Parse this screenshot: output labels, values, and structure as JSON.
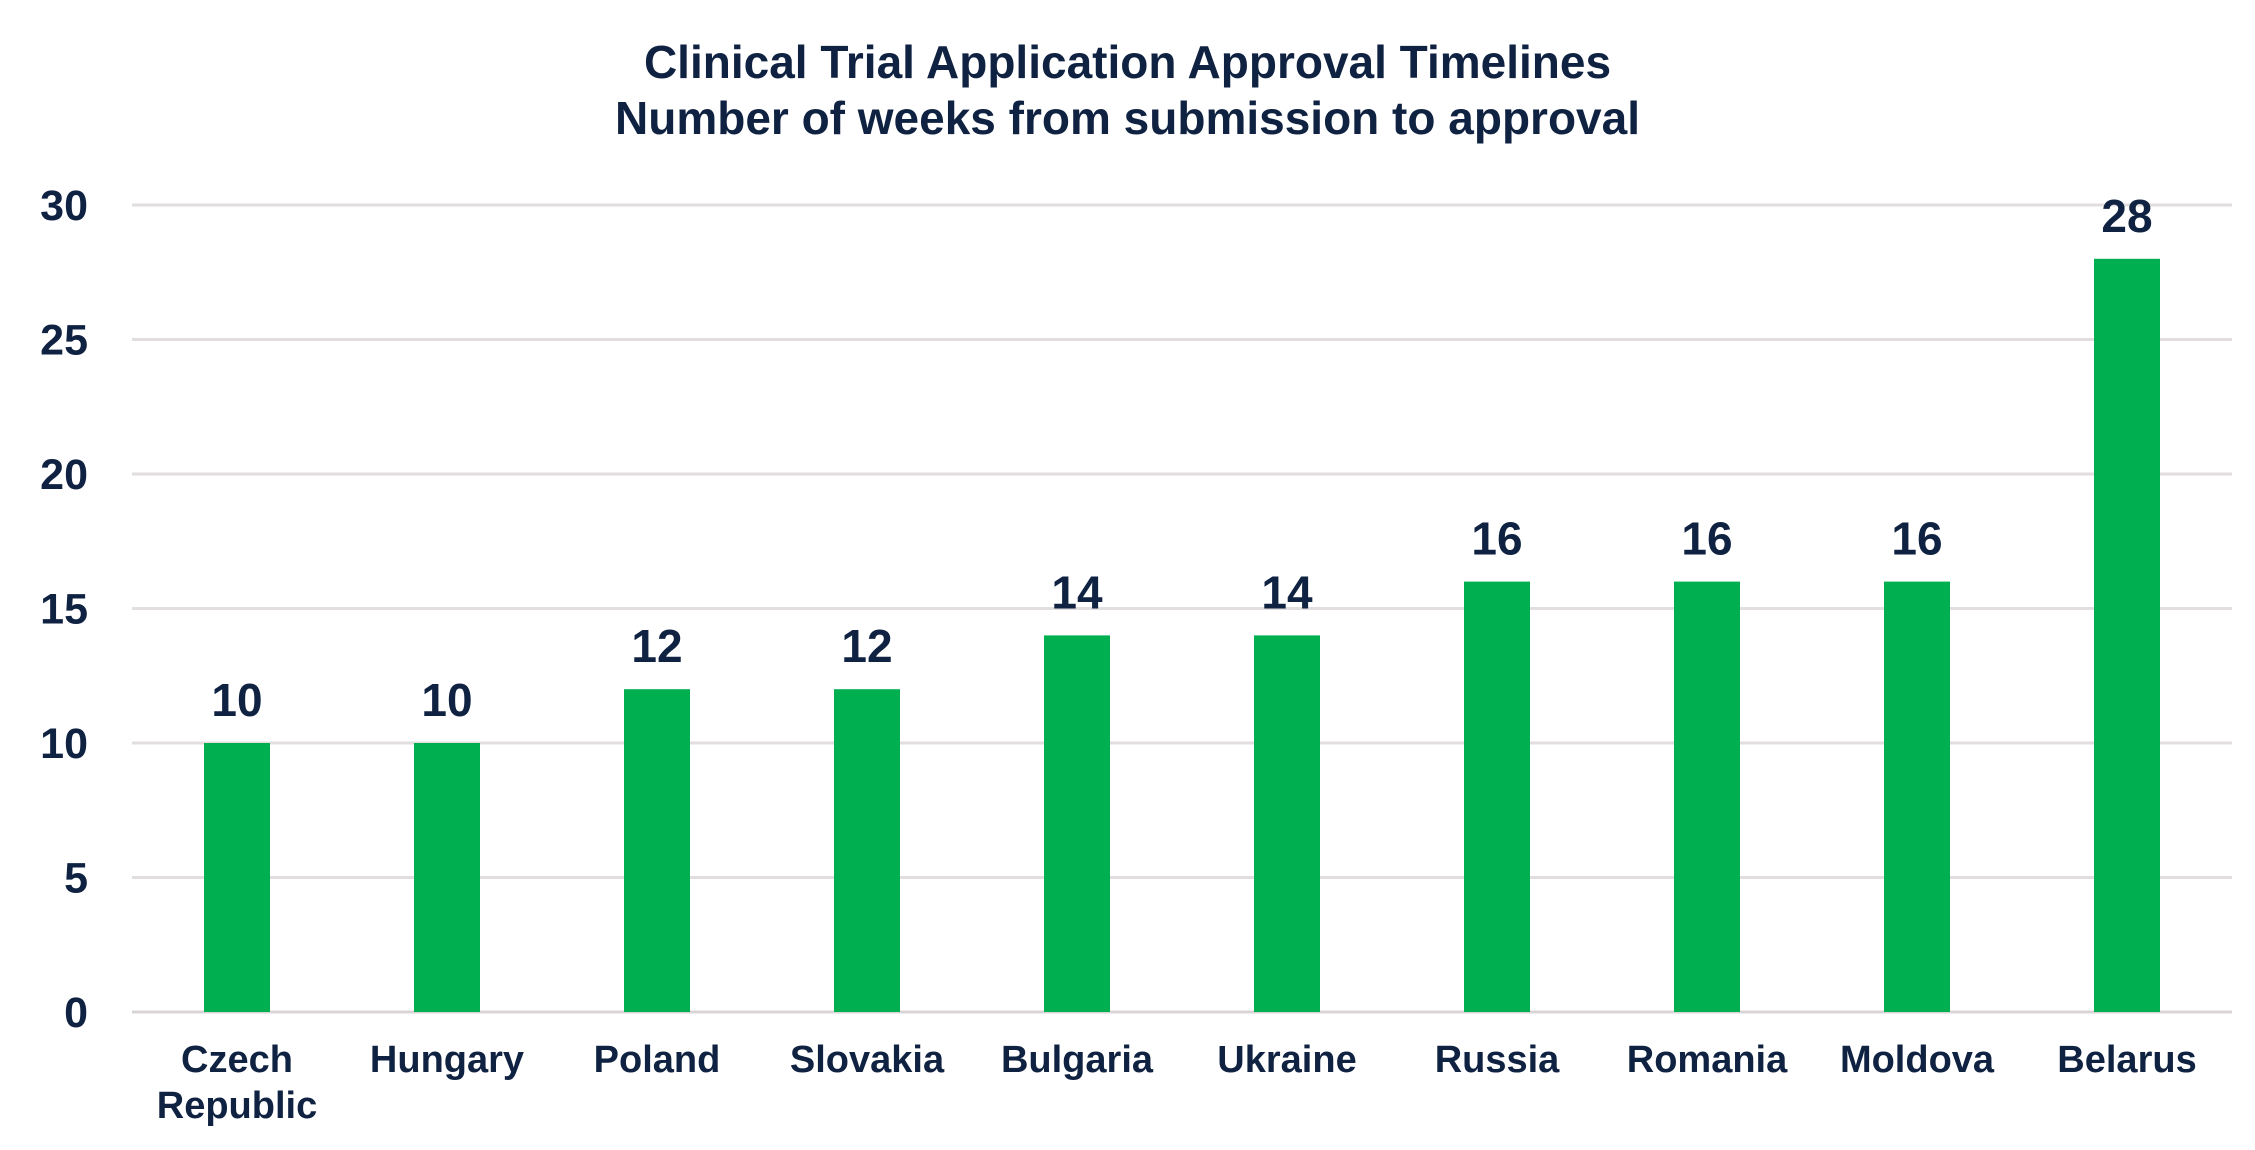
{
  "chart_data": {
    "type": "bar",
    "title": "Clinical Trial Application Approval Timelines",
    "subtitle": "Number of weeks from submission to approval",
    "categories": [
      "Czech Republic",
      "Hungary",
      "Poland",
      "Slovakia",
      "Bulgaria",
      "Ukraine",
      "Russia",
      "Romania",
      "Moldova",
      "Belarus"
    ],
    "category_lines": [
      [
        "Czech",
        "Republic"
      ],
      [
        "Hungary"
      ],
      [
        "Poland"
      ],
      [
        "Slovakia"
      ],
      [
        "Bulgaria"
      ],
      [
        "Ukraine"
      ],
      [
        "Russia"
      ],
      [
        "Romania"
      ],
      [
        "Moldova"
      ],
      [
        "Belarus"
      ]
    ],
    "values": [
      10,
      10,
      12,
      12,
      14,
      14,
      16,
      16,
      16,
      28
    ],
    "xlabel": "",
    "ylabel": "",
    "ylim": [
      0,
      30
    ],
    "yticks": [
      0,
      5,
      10,
      15,
      20,
      25,
      30
    ],
    "grid": true,
    "data_labels": true,
    "legend": "none",
    "colors": {
      "bar": "#00b050",
      "text": "#0f2241",
      "grid": "#e2dddf",
      "baseline": "#d9d4d6"
    }
  }
}
